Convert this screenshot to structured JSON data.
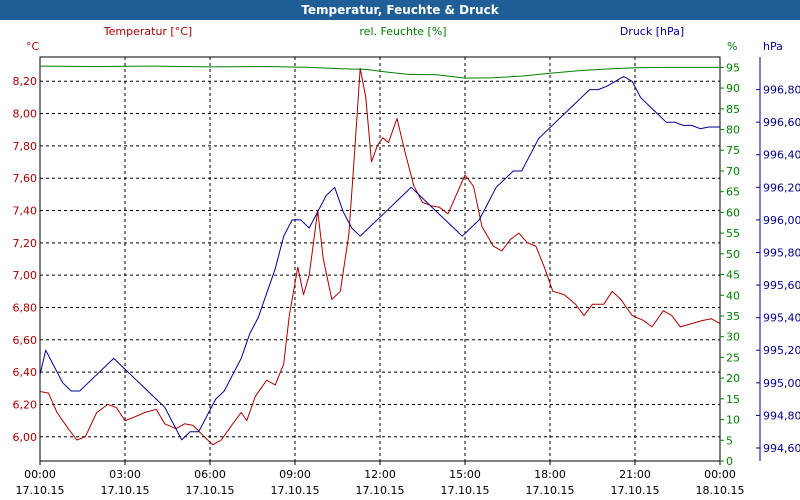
{
  "chart_data": {
    "type": "line",
    "title": "Temperatur, Feuchte & Druck",
    "x": {
      "ticks": [
        "00:00",
        "03:00",
        "06:00",
        "09:00",
        "12:00",
        "15:00",
        "18:00",
        "21:00",
        "00:00"
      ],
      "dates": [
        "17.10.15",
        "17.10.15",
        "17.10.15",
        "17.10.15",
        "17.10.15",
        "17.10.15",
        "17.10.15",
        "17.10.15",
        "18.10.15"
      ],
      "range_hours": [
        0,
        24
      ]
    },
    "axes": {
      "temperature": {
        "label": "Temperatur [°C]",
        "unit": "°C",
        "range": [
          5.85,
          8.35
        ],
        "ticks": [
          "6,00",
          "6,20",
          "6,40",
          "6,60",
          "6,80",
          "7,00",
          "7,20",
          "7,40",
          "7,60",
          "7,80",
          "8,00",
          "8,20"
        ],
        "color": "#aa0000"
      },
      "humidity": {
        "label": "rel. Feuchte [%]",
        "unit": "%",
        "range": [
          0,
          97.5
        ],
        "ticks": [
          "0",
          "5",
          "10",
          "15",
          "20",
          "25",
          "30",
          "35",
          "40",
          "45",
          "50",
          "55",
          "60",
          "65",
          "70",
          "75",
          "80",
          "85",
          "90",
          "95"
        ],
        "color": "#008000"
      },
      "pressure": {
        "label": "Druck [hPa]",
        "unit": "hPa",
        "range": [
          994.52,
          997.0
        ],
        "ticks": [
          "994,60",
          "994,80",
          "995,00",
          "995,20",
          "995,40",
          "995,60",
          "995,80",
          "996,00",
          "996,20",
          "996,40",
          "996,60",
          "996,80"
        ],
        "color": "#000090"
      }
    },
    "grid": true,
    "series": [
      {
        "name": "Temperatur [°C]",
        "axis": "temperature",
        "color": "#aa0000",
        "points": [
          [
            0,
            6.28
          ],
          [
            0.3,
            6.27
          ],
          [
            0.6,
            6.15
          ],
          [
            1.0,
            6.05
          ],
          [
            1.3,
            5.98
          ],
          [
            1.6,
            6.0
          ],
          [
            2.0,
            6.15
          ],
          [
            2.4,
            6.2
          ],
          [
            2.7,
            6.18
          ],
          [
            3.0,
            6.1
          ],
          [
            3.3,
            6.12
          ],
          [
            3.7,
            6.15
          ],
          [
            4.1,
            6.17
          ],
          [
            4.4,
            6.08
          ],
          [
            4.8,
            6.05
          ],
          [
            5.1,
            6.08
          ],
          [
            5.4,
            6.07
          ],
          [
            5.8,
            6.0
          ],
          [
            6.1,
            5.95
          ],
          [
            6.4,
            5.98
          ],
          [
            6.8,
            6.08
          ],
          [
            7.1,
            6.15
          ],
          [
            7.3,
            6.1
          ],
          [
            7.6,
            6.25
          ],
          [
            8.0,
            6.35
          ],
          [
            8.3,
            6.32
          ],
          [
            8.6,
            6.45
          ],
          [
            8.8,
            6.75
          ],
          [
            9.1,
            7.05
          ],
          [
            9.3,
            6.88
          ],
          [
            9.5,
            7.0
          ],
          [
            9.8,
            7.4
          ],
          [
            10.0,
            7.1
          ],
          [
            10.3,
            6.85
          ],
          [
            10.6,
            6.9
          ],
          [
            10.9,
            7.25
          ],
          [
            11.1,
            7.75
          ],
          [
            11.3,
            8.28
          ],
          [
            11.5,
            8.1
          ],
          [
            11.7,
            7.7
          ],
          [
            11.9,
            7.8
          ],
          [
            12.1,
            7.85
          ],
          [
            12.3,
            7.82
          ],
          [
            12.6,
            7.97
          ],
          [
            12.9,
            7.75
          ],
          [
            13.2,
            7.55
          ],
          [
            13.5,
            7.45
          ],
          [
            13.8,
            7.43
          ],
          [
            14.1,
            7.42
          ],
          [
            14.4,
            7.38
          ],
          [
            14.7,
            7.5
          ],
          [
            15.0,
            7.62
          ],
          [
            15.3,
            7.55
          ],
          [
            15.6,
            7.3
          ],
          [
            16.0,
            7.18
          ],
          [
            16.3,
            7.15
          ],
          [
            16.6,
            7.22
          ],
          [
            16.9,
            7.26
          ],
          [
            17.2,
            7.2
          ],
          [
            17.5,
            7.18
          ],
          [
            17.8,
            7.05
          ],
          [
            18.1,
            6.9
          ],
          [
            18.5,
            6.88
          ],
          [
            18.9,
            6.82
          ],
          [
            19.2,
            6.75
          ],
          [
            19.5,
            6.82
          ],
          [
            19.9,
            6.82
          ],
          [
            20.2,
            6.9
          ],
          [
            20.5,
            6.85
          ],
          [
            20.9,
            6.75
          ],
          [
            21.3,
            6.72
          ],
          [
            21.6,
            6.68
          ],
          [
            22.0,
            6.78
          ],
          [
            22.3,
            6.75
          ],
          [
            22.6,
            6.68
          ],
          [
            23.0,
            6.7
          ],
          [
            23.4,
            6.72
          ],
          [
            23.7,
            6.73
          ],
          [
            24.0,
            6.7
          ]
        ]
      },
      {
        "name": "rel. Feuchte [%]",
        "axis": "humidity",
        "color": "#008000",
        "points": [
          [
            0,
            95.3
          ],
          [
            2,
            95.2
          ],
          [
            4,
            95.3
          ],
          [
            6,
            95.1
          ],
          [
            8,
            95.2
          ],
          [
            9.5,
            95.0
          ],
          [
            10.5,
            94.7
          ],
          [
            11.5,
            94.5
          ],
          [
            12.3,
            93.8
          ],
          [
            13.0,
            93.3
          ],
          [
            14,
            93.2
          ],
          [
            15,
            92.4
          ],
          [
            16,
            92.5
          ],
          [
            17,
            92.9
          ],
          [
            18,
            93.6
          ],
          [
            19,
            94.2
          ],
          [
            20,
            94.6
          ],
          [
            21,
            94.9
          ],
          [
            22,
            95.0
          ],
          [
            24,
            95.0
          ]
        ]
      },
      {
        "name": "Druck [hPa]",
        "axis": "pressure",
        "color": "#000090",
        "points": [
          [
            0,
            995.05
          ],
          [
            0.2,
            995.2
          ],
          [
            0.5,
            995.1
          ],
          [
            0.8,
            995.0
          ],
          [
            1.1,
            994.95
          ],
          [
            1.4,
            994.95
          ],
          [
            1.7,
            995.0
          ],
          [
            2.0,
            995.05
          ],
          [
            2.3,
            995.1
          ],
          [
            2.6,
            995.15
          ],
          [
            2.9,
            995.1
          ],
          [
            3.2,
            995.05
          ],
          [
            3.5,
            995.0
          ],
          [
            3.8,
            994.95
          ],
          [
            4.1,
            994.9
          ],
          [
            4.4,
            994.85
          ],
          [
            4.7,
            994.75
          ],
          [
            5.0,
            994.65
          ],
          [
            5.3,
            994.7
          ],
          [
            5.6,
            994.7
          ],
          [
            5.9,
            994.8
          ],
          [
            6.2,
            994.9
          ],
          [
            6.5,
            994.95
          ],
          [
            6.8,
            995.05
          ],
          [
            7.1,
            995.15
          ],
          [
            7.4,
            995.3
          ],
          [
            7.7,
            995.4
          ],
          [
            8.0,
            995.55
          ],
          [
            8.3,
            995.7
          ],
          [
            8.6,
            995.9
          ],
          [
            8.9,
            996.0
          ],
          [
            9.2,
            996.0
          ],
          [
            9.5,
            995.95
          ],
          [
            9.8,
            996.05
          ],
          [
            10.1,
            996.15
          ],
          [
            10.4,
            996.2
          ],
          [
            10.7,
            996.05
          ],
          [
            11.0,
            995.95
          ],
          [
            11.3,
            995.9
          ],
          [
            11.6,
            995.95
          ],
          [
            11.9,
            996.0
          ],
          [
            12.2,
            996.05
          ],
          [
            12.5,
            996.1
          ],
          [
            12.8,
            996.15
          ],
          [
            13.1,
            996.2
          ],
          [
            13.4,
            996.15
          ],
          [
            13.7,
            996.1
          ],
          [
            14.0,
            996.05
          ],
          [
            14.3,
            996.0
          ],
          [
            14.6,
            995.95
          ],
          [
            14.9,
            995.9
          ],
          [
            15.2,
            995.95
          ],
          [
            15.5,
            996.0
          ],
          [
            15.8,
            996.1
          ],
          [
            16.1,
            996.2
          ],
          [
            16.4,
            996.25
          ],
          [
            16.7,
            996.3
          ],
          [
            17.0,
            996.3
          ],
          [
            17.3,
            996.4
          ],
          [
            17.6,
            996.5
          ],
          [
            17.9,
            996.55
          ],
          [
            18.2,
            996.6
          ],
          [
            18.5,
            996.65
          ],
          [
            18.8,
            996.7
          ],
          [
            19.1,
            996.75
          ],
          [
            19.4,
            996.8
          ],
          [
            19.7,
            996.8
          ],
          [
            20.0,
            996.82
          ],
          [
            20.3,
            996.85
          ],
          [
            20.6,
            996.88
          ],
          [
            20.9,
            996.85
          ],
          [
            21.2,
            996.75
          ],
          [
            21.5,
            996.7
          ],
          [
            21.8,
            996.65
          ],
          [
            22.1,
            996.6
          ],
          [
            22.4,
            996.6
          ],
          [
            22.7,
            996.58
          ],
          [
            23.0,
            996.58
          ],
          [
            23.3,
            996.56
          ],
          [
            23.6,
            996.57
          ],
          [
            24.0,
            996.57
          ]
        ]
      }
    ]
  }
}
